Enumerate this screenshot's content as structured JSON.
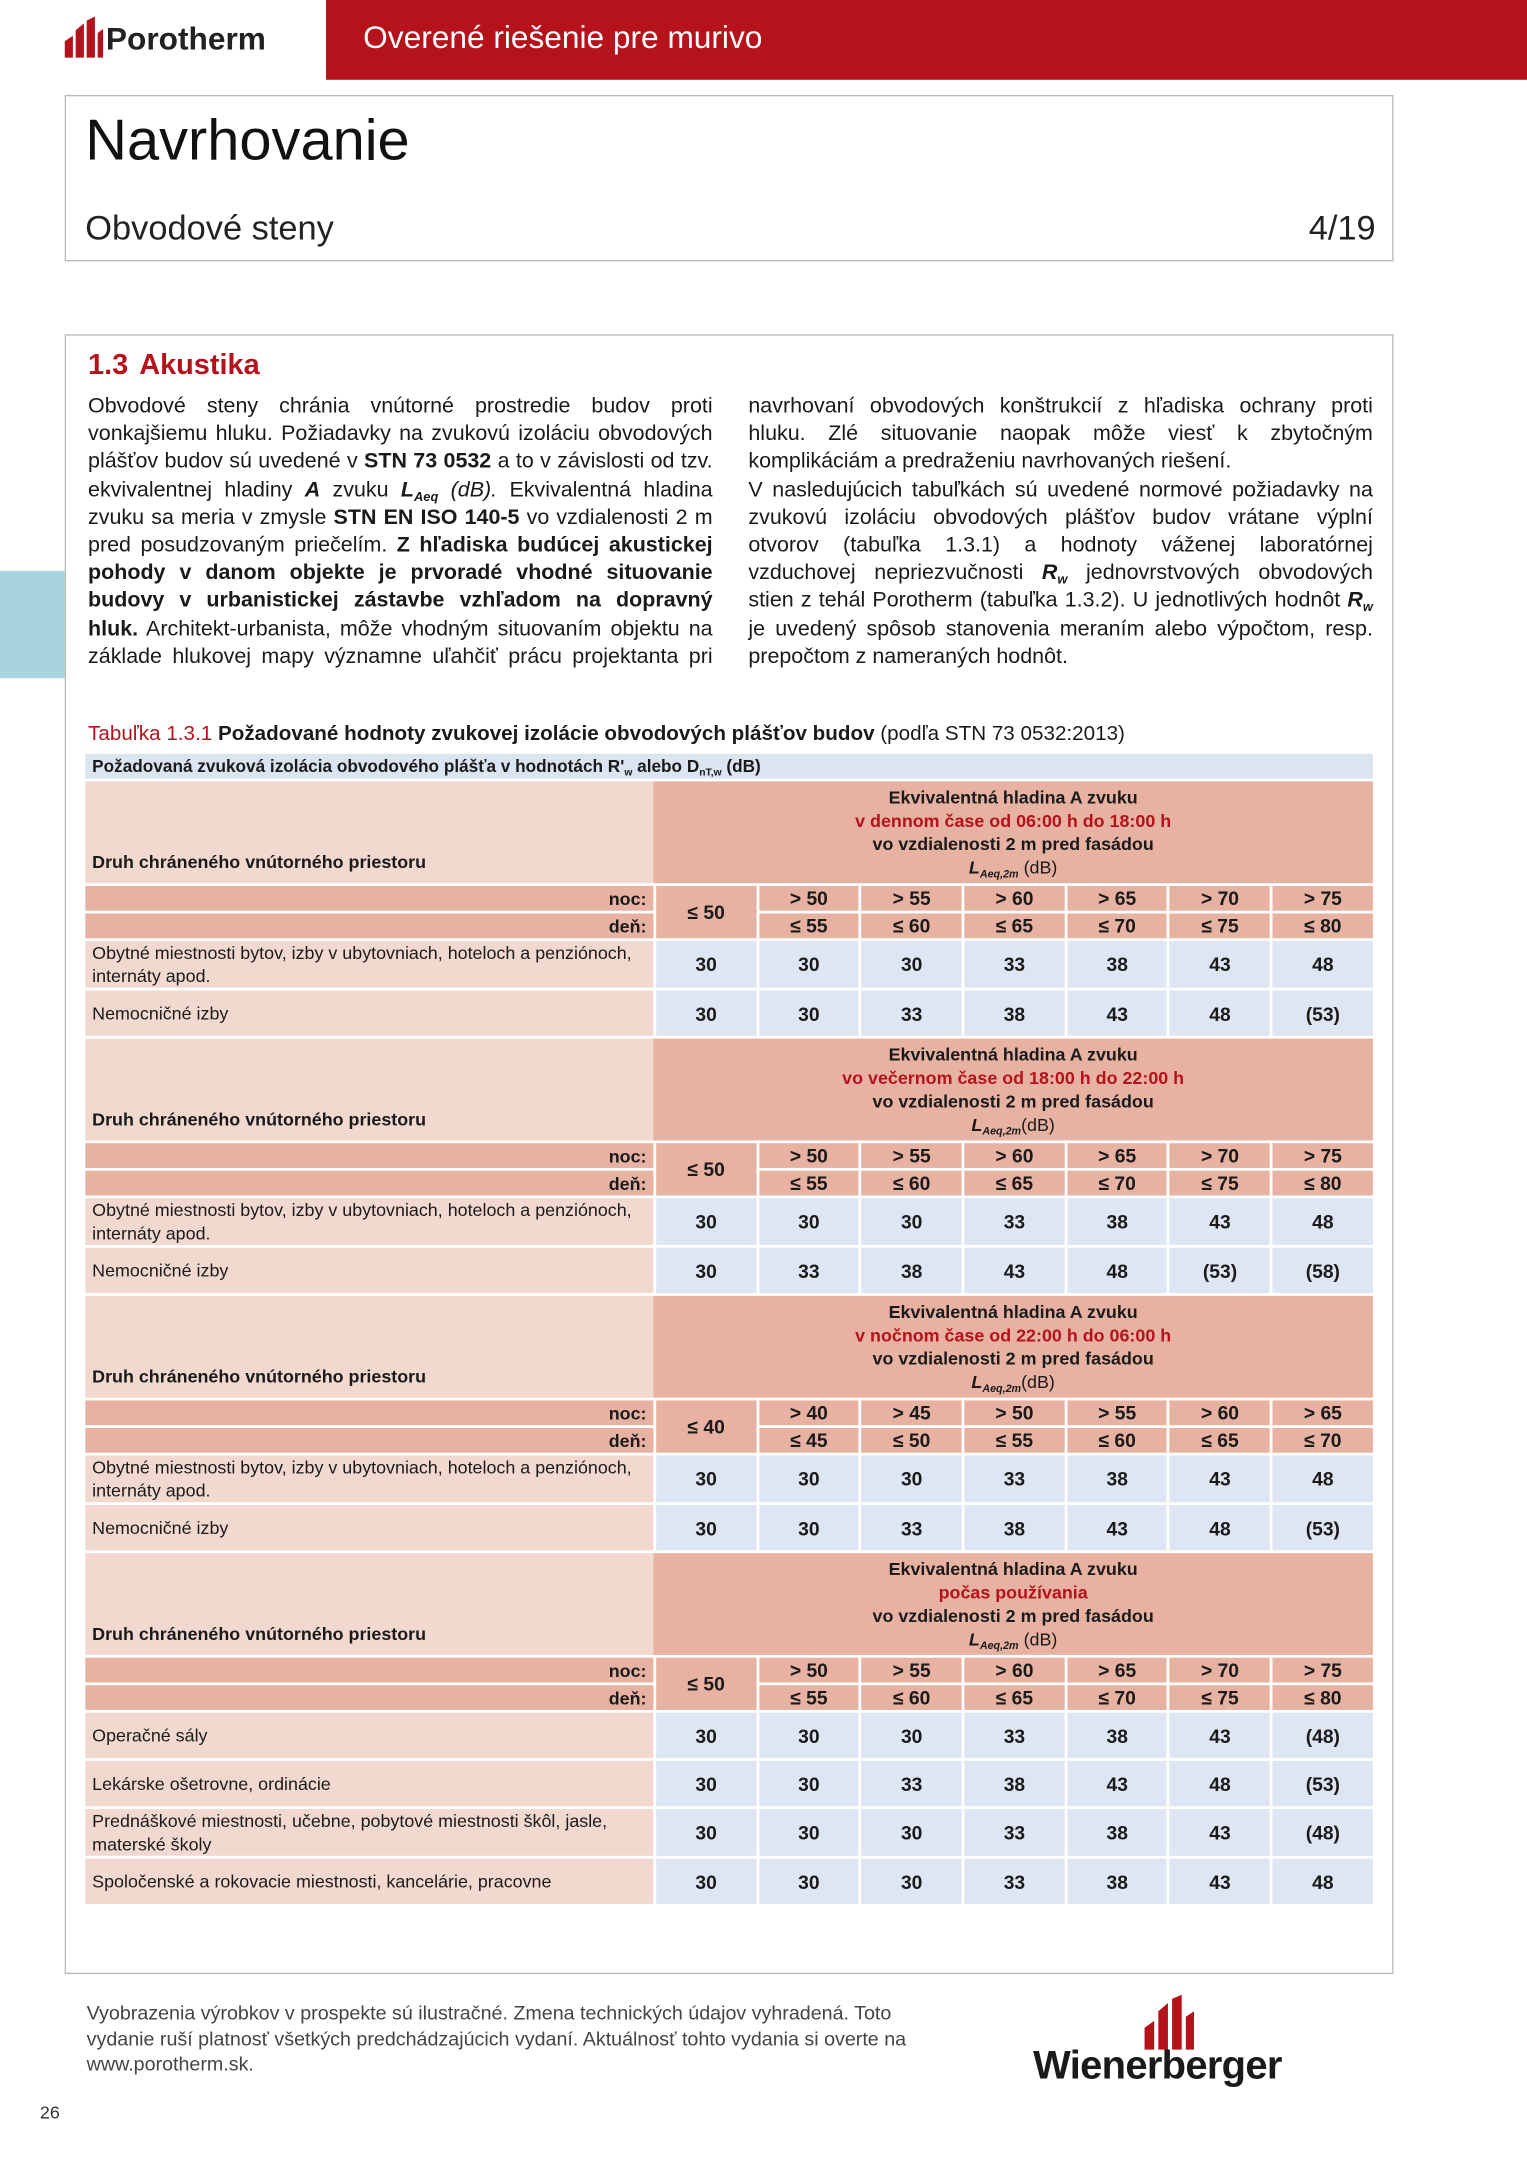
{
  "header": {
    "brand": "Porotherm",
    "tagline": "Overené riešenie pre murivo"
  },
  "title": "Navrhovanie",
  "subtitle": "Obvodové steny",
  "page_of": "4/19",
  "section": {
    "number": "1.3",
    "heading": "Akustika"
  },
  "paragraphs": [
    [
      {
        "text": "Obvodové steny chránia vnútorné prostredie budov proti vonkajšiemu hluku. Požiadavky na zvukovú izoláciu obvodových plášťov budov sú uvedené v "
      },
      {
        "text": "STN 73 0532",
        "bold": true
      },
      {
        "text": " a to v závislosti od tzv. ekvivalentnej hladiny "
      },
      {
        "text": "A",
        "bold": true,
        "italic": true
      },
      {
        "text": " zvuku "
      },
      {
        "text": "L",
        "bold": true,
        "italic": true
      },
      {
        "text": "Aeq",
        "bold": true,
        "italic": true,
        "sub": true
      },
      {
        "text": " (dB).",
        "italic": true
      },
      {
        "text": " Ekvivalentná hladina zvuku  sa meria v zmysle "
      },
      {
        "text": "STN EN ISO 140-5",
        "bold": true
      },
      {
        "text": " vo vzdialenosti 2 m pred posudzovaným priečelím. "
      },
      {
        "text": "Z hľadiska budúcej akustickej pohody v danom objekte je prvoradé vhodné situovanie budovy v urbanistickej zástavbe vzhľadom na dopravný hluk.",
        "bold": true
      },
      {
        "text": " Architekt-urbanista, môže vhodným situovaním objektu na základe hlukovej mapy významne uľahčiť prácu projektanta pri navrhovaní obvodových konštrukcií z hľadiska ochrany proti hluku. Zlé situovanie naopak môže viesť k zbytočným komplikáciám a predraženiu navrhovaných riešení."
      }
    ],
    [
      {
        "text": "V nasledujúcich tabuľkách sú uvedené normové požiadavky na zvukovú izoláciu obvodových plášťov budov vrátane výplní otvorov (tabuľka 1.3.1) a hodnoty váženej laboratórnej vzduchovej nepriezvučnosti "
      },
      {
        "text": "R",
        "bold": true,
        "italic": true
      },
      {
        "text": "w",
        "bold": true,
        "italic": true,
        "sub": true
      },
      {
        "text": " jednovrstvových obvodových stien z tehál Porotherm (tabuľka 1.3.2). U jednotlivých hodnôt "
      },
      {
        "text": "R",
        "bold": true,
        "italic": true
      },
      {
        "text": "w",
        "bold": true,
        "italic": true,
        "sub": true
      },
      {
        "text": " je uvedený spôsob stanovenia meraním alebo výpočtom, resp. prepočtom z nameraných hodnôt."
      }
    ]
  ],
  "table": {
    "caption": [
      {
        "text": "Tabuľka 1.3.1",
        "red": true
      },
      {
        "text": " Požadované hodnoty zvukovej izolácie obvodových plášťov budov",
        "bold": true
      },
      {
        "text": " (podľa STN 73 0532:2013)"
      }
    ],
    "top_header": [
      {
        "text": "Požadovaná zvuková izolácia obvodového plášťa v hodnotách R'"
      },
      {
        "text": "w",
        "sub": true
      },
      {
        "text": " alebo D"
      },
      {
        "text": "nT,w",
        "sub": true
      },
      {
        "text": " (dB)"
      }
    ],
    "blocks": [
      {
        "label": "Druh chráneného vnútorného priestoru",
        "header": [
          [
            {
              "text": "Ekvivalentná hladina A zvuku"
            }
          ],
          [
            {
              "text": "v dennom čase od 06:00 h do 18:00 h",
              "red": true
            }
          ],
          [
            {
              "text": "vo vzdialenosti 2 m pred fasádou"
            }
          ],
          [
            {
              "text": "L",
              "italic": true
            },
            {
              "text": "Aeq,2m",
              "italic": true,
              "sub": true
            },
            {
              "text": " (dB)",
              "normal": true
            }
          ]
        ],
        "night_label": "noc:",
        "day_label": "deň:",
        "first": "≤ 50",
        "night": [
          "> 50",
          "> 55",
          "> 60",
          "> 65",
          "> 70",
          "> 75"
        ],
        "day": [
          "≤ 55",
          "≤ 60",
          "≤ 65",
          "≤ 70",
          "≤ 75",
          "≤ 80"
        ],
        "rows": [
          {
            "label": "Obytné miestnosti bytov, izby v ubytovniach, hoteloch a penziónoch, internáty apod.",
            "values": [
              30,
              30,
              30,
              33,
              38,
              43,
              48
            ]
          },
          {
            "label": "Nemocničné izby",
            "values": [
              30,
              30,
              33,
              38,
              43,
              48,
              "(53)"
            ]
          }
        ]
      },
      {
        "label": "Druh chráneného vnútorného priestoru",
        "header": [
          [
            {
              "text": "Ekvivalentná hladina A zvuku"
            }
          ],
          [
            {
              "text": "vo večernom čase od 18:00 h do 22:00 h",
              "red": true
            }
          ],
          [
            {
              "text": "vo vzdialenosti 2 m pred fasádou"
            }
          ],
          [
            {
              "text": "L",
              "italic": true
            },
            {
              "text": "Aeq,2m",
              "italic": true,
              "sub": true
            },
            {
              "text": "(dB)",
              "normal": true
            }
          ]
        ],
        "night_label": "noc:",
        "day_label": "deň:",
        "first": "≤ 50",
        "night": [
          "> 50",
          "> 55",
          "> 60",
          "> 65",
          "> 70",
          "> 75"
        ],
        "day": [
          "≤ 55",
          "≤ 60",
          "≤ 65",
          "≤ 70",
          "≤ 75",
          "≤ 80"
        ],
        "rows": [
          {
            "label": "Obytné miestnosti bytov, izby v ubytovniach, hoteloch a penziónoch, internáty apod.",
            "values": [
              30,
              30,
              30,
              33,
              38,
              43,
              48
            ]
          },
          {
            "label": "Nemocničné izby",
            "values": [
              30,
              33,
              38,
              43,
              48,
              "(53)",
              "(58)"
            ]
          }
        ]
      },
      {
        "label": "Druh chráneného vnútorného priestoru",
        "header": [
          [
            {
              "text": "Ekvivalentná hladina A zvuku"
            }
          ],
          [
            {
              "text": "v nočnom čase od 22:00 h do 06:00 h",
              "red": true
            }
          ],
          [
            {
              "text": "vo vzdialenosti 2 m pred fasádou"
            }
          ],
          [
            {
              "text": "L",
              "italic": true
            },
            {
              "text": "Aeq,2m",
              "italic": true,
              "sub": true
            },
            {
              "text": "(dB)",
              "normal": true
            }
          ]
        ],
        "night_label": "noc:",
        "day_label": "deň:",
        "first": "≤ 40",
        "night": [
          "> 40",
          "> 45",
          "> 50",
          "> 55",
          "> 60",
          "> 65"
        ],
        "day": [
          "≤ 45",
          "≤ 50",
          "≤ 55",
          "≤ 60",
          "≤ 65",
          "≤ 70"
        ],
        "rows": [
          {
            "label": "Obytné miestnosti bytov, izby v ubytovniach, hoteloch a penziónoch, internáty apod.",
            "values": [
              30,
              30,
              30,
              33,
              38,
              43,
              48
            ]
          },
          {
            "label": "Nemocničné izby",
            "values": [
              30,
              30,
              33,
              38,
              43,
              48,
              "(53)"
            ]
          }
        ]
      },
      {
        "label": "Druh chráneného vnútorného priestoru",
        "header": [
          [
            {
              "text": "Ekvivalentná hladina A zvuku"
            }
          ],
          [
            {
              "text": "počas používania",
              "red": true
            }
          ],
          [
            {
              "text": "vo vzdialenosti 2 m pred fasádou"
            }
          ],
          [
            {
              "text": "L",
              "italic": true
            },
            {
              "text": "Aeq,2m",
              "italic": true,
              "sub": true
            },
            {
              "text": " (dB)",
              "normal": true
            }
          ]
        ],
        "night_label": "noc:",
        "day_label": "deň:",
        "first": "≤ 50",
        "night": [
          "> 50",
          "> 55",
          "> 60",
          "> 65",
          "> 70",
          "> 75"
        ],
        "day": [
          "≤ 55",
          "≤ 60",
          "≤ 65",
          "≤ 70",
          "≤ 75",
          "≤ 80"
        ],
        "rows": [
          {
            "label": "Operačné sály",
            "values": [
              30,
              30,
              30,
              33,
              38,
              43,
              "(48)"
            ]
          },
          {
            "label": "Lekárske ošetrovne, ordinácie",
            "values": [
              30,
              30,
              33,
              38,
              43,
              48,
              "(53)"
            ]
          },
          {
            "label": "Prednáškové miestnosti, učebne, pobytové miestnosti škôl, jasle, materské školy",
            "values": [
              30,
              30,
              30,
              33,
              38,
              43,
              "(48)"
            ]
          },
          {
            "label": "Spoločenské a rokovacie miestnosti, kancelárie, pracovne",
            "values": [
              30,
              30,
              30,
              33,
              38,
              43,
              48
            ]
          }
        ]
      }
    ]
  },
  "footer": {
    "disclaimer": "Vyobrazenia výrobkov v prospekte sú ilustračné. Zmena technických údajov vyhradená. Toto vydanie ruší platnosť všetkých predchádzajúcich vydaní. Aktuálnosť tohto vydania si overte na www.porotherm.sk.",
    "brand": "Wienerberger",
    "page_number": "26"
  }
}
